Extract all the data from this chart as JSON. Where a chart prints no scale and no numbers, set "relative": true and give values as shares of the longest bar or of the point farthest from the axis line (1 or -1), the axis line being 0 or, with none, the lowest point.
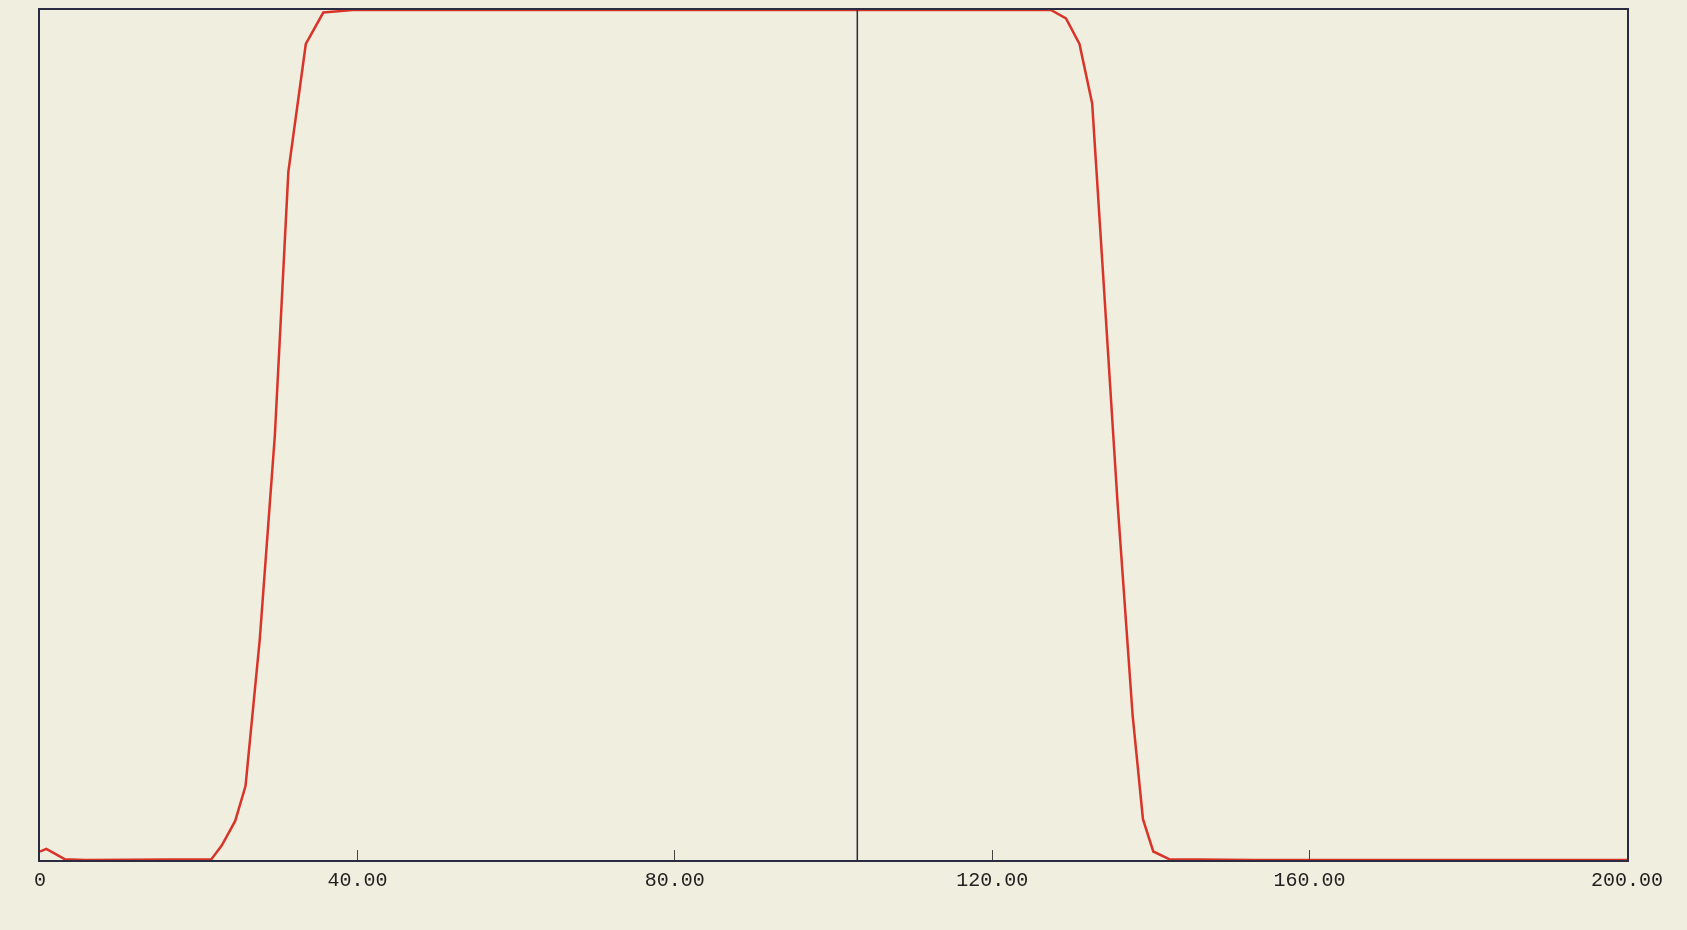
{
  "chart_data": {
    "type": "line",
    "relative": true,
    "x": [
      0,
      0.8,
      3.1,
      5.7,
      21.6,
      22.9,
      24.6,
      25.9,
      27.7,
      29.6,
      31.3,
      33.5,
      35.7,
      39.4,
      127.4,
      129.3,
      131.0,
      132.6,
      133.9,
      135.8,
      137.7,
      139.0,
      140.3,
      142.3,
      153.3,
      200
    ],
    "series": [
      {
        "color": "#d8342a",
        "values": [
          0.01,
          0.013,
          0.001,
          0,
          0.001,
          0.017,
          0.046,
          0.087,
          0.26,
          0.5,
          0.81,
          0.96,
          0.997,
          1,
          1,
          0.99,
          0.96,
          0.89,
          0.7,
          0.42,
          0.17,
          0.048,
          0.01,
          0.001,
          0,
          0
        ]
      }
    ],
    "xlim": [
      0,
      200
    ],
    "xticks": [
      {
        "value": 0,
        "label": "0"
      },
      {
        "value": 40,
        "label": "40.00"
      },
      {
        "value": 80,
        "label": "80.00"
      },
      {
        "value": 120,
        "label": "120.00"
      },
      {
        "value": 160,
        "label": "160.00"
      },
      {
        "value": 200,
        "label": "200.00"
      }
    ],
    "ref_lines": [
      {
        "axis": "x",
        "value": 103,
        "color": "#2a2a40"
      }
    ],
    "marker": "none",
    "line_style": "solid"
  }
}
